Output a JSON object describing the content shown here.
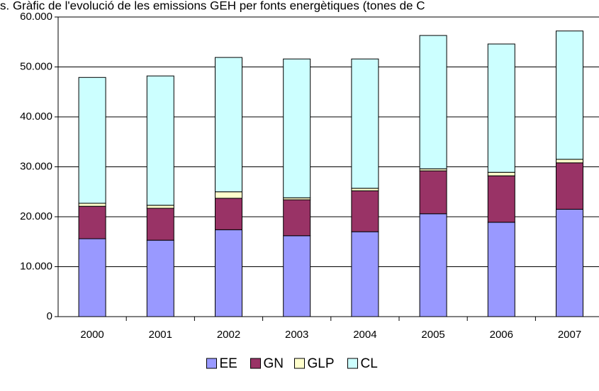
{
  "chart_data": {
    "type": "bar",
    "stacked": true,
    "title": "s. Gràfic de l'evolució de les emissions GEH per fonts energètiques (tones de C",
    "categories": [
      "2000",
      "2001",
      "2002",
      "2003",
      "2004",
      "2005",
      "2006",
      "2007"
    ],
    "series": [
      {
        "name": "EE",
        "color": "#9999ff",
        "values": [
          15600,
          15300,
          17400,
          16200,
          17000,
          20600,
          18900,
          21500
        ]
      },
      {
        "name": "GN",
        "color": "#993366",
        "values": [
          6500,
          6400,
          6300,
          7200,
          8200,
          8600,
          9300,
          9300
        ]
      },
      {
        "name": "GLP",
        "color": "#ffffcc",
        "values": [
          600,
          600,
          1300,
          400,
          500,
          400,
          700,
          700
        ]
      },
      {
        "name": "CL",
        "color": "#ccffff",
        "values": [
          25200,
          25900,
          26900,
          27800,
          25900,
          26700,
          25700,
          25700
        ]
      }
    ],
    "ylim": [
      0,
      60000
    ],
    "yticks": [
      0,
      {
        "value": 10000,
        "label": "10.000"
      },
      {
        "value": 20000,
        "label": "20.000"
      },
      {
        "value": 30000,
        "label": "30.000"
      },
      {
        "value": 40000,
        "label": "40.000"
      },
      {
        "value": 50000,
        "label": "50.000"
      },
      {
        "value": 60000,
        "label": "60.000"
      }
    ],
    "grid": true,
    "legend": "bottom"
  }
}
